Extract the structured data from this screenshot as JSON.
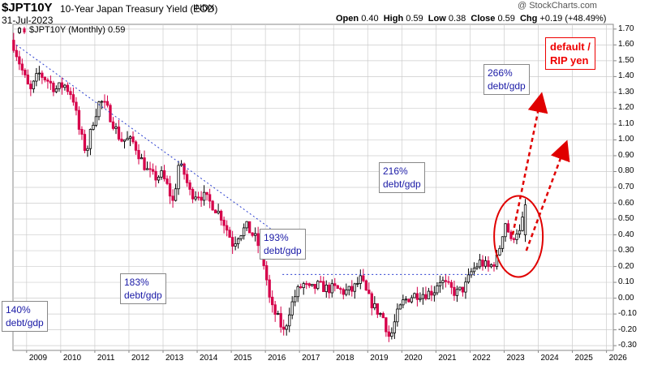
{
  "header": {
    "symbol": "$JPT10Y",
    "description": "10-Year Japan Treasury Yield (EOD)",
    "exchange": "INDX",
    "date": "31-Jul-2023",
    "copyright": "@ StockCharts.com",
    "open_label": "Open",
    "open": "0.40",
    "high_label": "High",
    "high": "0.59",
    "low_label": "Low",
    "low": "0.38",
    "close_label": "Close",
    "close": "0.59",
    "chg_label": "Chg",
    "chg": "+0.19 (+48.49%)"
  },
  "legend": {
    "label": "$JPT10Y (Monthly) 0.59"
  },
  "colors": {
    "up": "#000000",
    "down": "#d6004a",
    "accent_red": "#e00000",
    "note_blue": "#1a1aa6",
    "line_blue": "#2b3fcf",
    "grid": "#cccccc"
  },
  "annotations": {
    "n140": "140%",
    "n140b": "debt/gdp",
    "n183": "183%",
    "n183b": "debt/gdp",
    "n193": "193%",
    "n193b": "debt/gdp",
    "n216": "216%",
    "n216b": "debt/gdp",
    "n266": "266%",
    "n266b": "debt/gdp",
    "red1": "default /",
    "red2": "RIP yen"
  },
  "chart_data": {
    "type": "candlestick",
    "title": "$JPT10Y 10-Year Japan Treasury Yield (EOD) Monthly",
    "ylim": [
      -0.33,
      1.73
    ],
    "y_ticks": [
      "-0.30",
      "-0.20",
      "-0.10",
      "0.00",
      "0.10",
      "0.20",
      "0.30",
      "0.40",
      "0.50",
      "0.60",
      "0.70",
      "0.80",
      "0.90",
      "1.00",
      "1.10",
      "1.20",
      "1.30",
      "1.40",
      "1.50",
      "1.60",
      "1.70"
    ],
    "x_ticks": [
      "2009",
      "2010",
      "2011",
      "2012",
      "2013",
      "2014",
      "2015",
      "2016",
      "2017",
      "2018",
      "2019",
      "2020",
      "2021",
      "2022",
      "2023",
      "2024",
      "2025",
      "2026"
    ],
    "x_start": 2008.6,
    "x_end": 2026.2,
    "close_path": [
      [
        2008.62,
        1.6
      ],
      [
        2008.85,
        1.45
      ],
      [
        2009.1,
        1.3
      ],
      [
        2009.35,
        1.42
      ],
      [
        2009.6,
        1.38
      ],
      [
        2009.85,
        1.32
      ],
      [
        2010.1,
        1.35
      ],
      [
        2010.35,
        1.28
      ],
      [
        2010.55,
        1.05
      ],
      [
        2010.75,
        0.92
      ],
      [
        2010.95,
        1.12
      ],
      [
        2011.15,
        1.25
      ],
      [
        2011.35,
        1.2
      ],
      [
        2011.55,
        1.1
      ],
      [
        2011.75,
        1.0
      ],
      [
        2011.95,
        1.0
      ],
      [
        2012.15,
        0.98
      ],
      [
        2012.35,
        0.88
      ],
      [
        2012.55,
        0.8
      ],
      [
        2012.75,
        0.76
      ],
      [
        2012.95,
        0.78
      ],
      [
        2013.1,
        0.72
      ],
      [
        2013.3,
        0.6
      ],
      [
        2013.45,
        0.84
      ],
      [
        2013.6,
        0.8
      ],
      [
        2013.8,
        0.66
      ],
      [
        2014.0,
        0.66
      ],
      [
        2014.2,
        0.64
      ],
      [
        2014.45,
        0.59
      ],
      [
        2014.7,
        0.52
      ],
      [
        2014.9,
        0.42
      ],
      [
        2015.05,
        0.34
      ],
      [
        2015.2,
        0.4
      ],
      [
        2015.45,
        0.45
      ],
      [
        2015.7,
        0.38
      ],
      [
        2015.9,
        0.28
      ],
      [
        2016.05,
        0.1
      ],
      [
        2016.15,
        -0.05
      ],
      [
        2016.35,
        -0.12
      ],
      [
        2016.55,
        -0.22
      ],
      [
        2016.7,
        -0.08
      ],
      [
        2016.9,
        0.03
      ],
      [
        2017.1,
        0.09
      ],
      [
        2017.3,
        0.05
      ],
      [
        2017.55,
        0.08
      ],
      [
        2017.8,
        0.06
      ],
      [
        2018.05,
        0.06
      ],
      [
        2018.3,
        0.04
      ],
      [
        2018.55,
        0.05
      ],
      [
        2018.8,
        0.12
      ],
      [
        2019.0,
        0.01
      ],
      [
        2019.2,
        -0.06
      ],
      [
        2019.45,
        -0.12
      ],
      [
        2019.65,
        -0.26
      ],
      [
        2019.85,
        -0.11
      ],
      [
        2020.05,
        -0.02
      ],
      [
        2020.25,
        0.01
      ],
      [
        2020.5,
        0.03
      ],
      [
        2020.75,
        0.03
      ],
      [
        2020.95,
        0.05
      ],
      [
        2021.1,
        0.12
      ],
      [
        2021.35,
        0.07
      ],
      [
        2021.6,
        0.03
      ],
      [
        2021.85,
        0.07
      ],
      [
        2022.05,
        0.17
      ],
      [
        2022.3,
        0.23
      ],
      [
        2022.55,
        0.19
      ],
      [
        2022.8,
        0.25
      ],
      [
        2022.95,
        0.41
      ],
      [
        2023.05,
        0.49
      ],
      [
        2023.2,
        0.35
      ],
      [
        2023.35,
        0.43
      ],
      [
        2023.5,
        0.4
      ],
      [
        2023.58,
        0.59
      ]
    ],
    "trendline_start": [
      2008.7,
      1.6
    ],
    "trendline_end": [
      2016.15,
      0.44
    ],
    "support_y": 0.15,
    "support_x": [
      2016.5,
      2022.6
    ],
    "circle_center": [
      2023.42,
      0.39
    ],
    "arrows": [
      [
        2023.25,
        0.4,
        2024.05,
        1.24
      ],
      [
        2023.65,
        0.3,
        2024.75,
        0.94
      ]
    ]
  }
}
